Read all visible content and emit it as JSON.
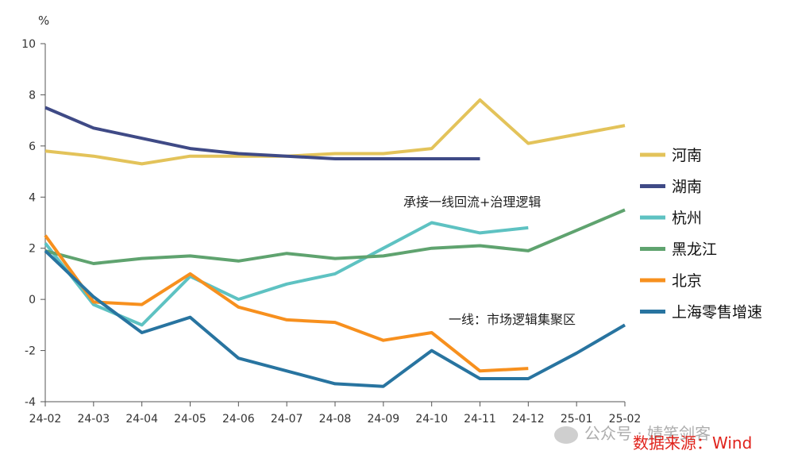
{
  "chart_data": {
    "type": "line",
    "ylabel": "%",
    "ylim": [
      -4,
      10
    ],
    "yticks": [
      -4,
      -2,
      0,
      2,
      4,
      6,
      8,
      10
    ],
    "categories": [
      "24-02",
      "24-03",
      "24-04",
      "24-05",
      "24-06",
      "24-07",
      "24-08",
      "24-09",
      "24-10",
      "24-11",
      "24-12",
      "25-01",
      "25-02"
    ],
    "series": [
      {
        "name": "河南",
        "color": "#e3c35a",
        "values": [
          5.8,
          5.6,
          5.3,
          5.6,
          5.6,
          5.6,
          5.7,
          5.7,
          5.9,
          7.8,
          6.1,
          6.45,
          6.8
        ]
      },
      {
        "name": "湖南",
        "color": "#3f4a86",
        "values": [
          7.5,
          6.7,
          6.3,
          5.9,
          5.7,
          5.6,
          5.5,
          5.5,
          5.5,
          5.5,
          null,
          null,
          null
        ]
      },
      {
        "name": "杭州",
        "color": "#5ec2c2",
        "values": [
          2.2,
          -0.2,
          -1.0,
          0.9,
          0.0,
          0.6,
          1.0,
          2.0,
          3.0,
          2.6,
          2.8,
          null,
          null
        ]
      },
      {
        "name": "黑龙江",
        "color": "#5fa36f",
        "values": [
          1.9,
          1.4,
          1.6,
          1.7,
          1.5,
          1.8,
          1.6,
          1.7,
          2.0,
          2.1,
          1.9,
          2.7,
          3.5
        ]
      },
      {
        "name": "北京",
        "color": "#f7901e",
        "values": [
          2.5,
          -0.1,
          -0.2,
          1.0,
          -0.3,
          -0.8,
          -0.9,
          -1.6,
          -1.3,
          -2.8,
          -2.7,
          null,
          null
        ]
      },
      {
        "name": "上海零售增速",
        "color": "#2874a0",
        "values": [
          1.9,
          0.1,
          -1.3,
          -0.7,
          -2.3,
          -2.8,
          -3.3,
          -3.4,
          -2.0,
          -3.1,
          -3.1,
          -2.1,
          -1.0
        ]
      }
    ],
    "annotations": [
      "承接一线回流+治理逻辑",
      "一线：市场逻辑集聚区"
    ],
    "legend_position": "right",
    "grid": false
  },
  "footer": {
    "watermark": "公众号 · 婧笑剑客",
    "source": "数据来源：Wind"
  }
}
